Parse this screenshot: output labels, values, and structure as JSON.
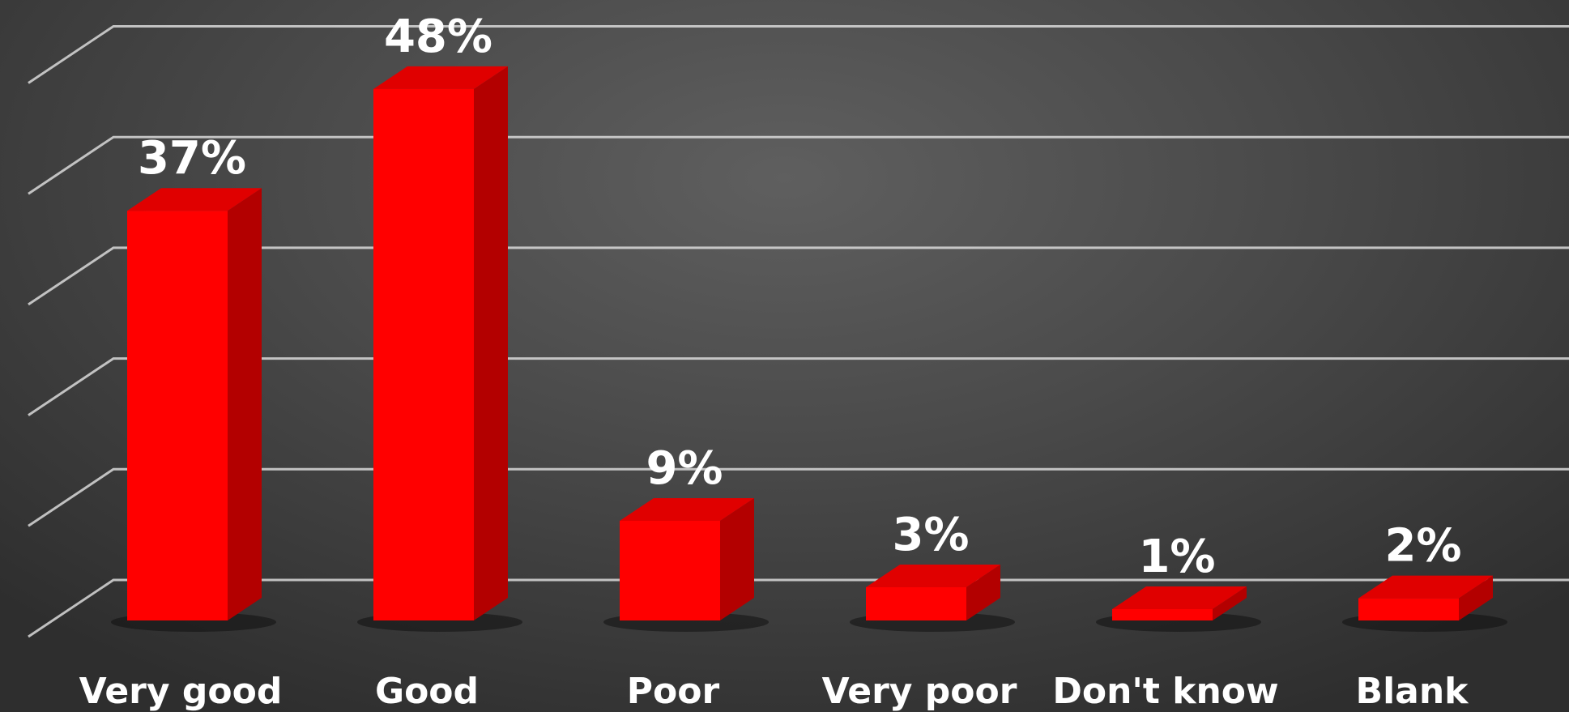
{
  "chart_data": {
    "type": "bar",
    "categories": [
      "Very good",
      "Good",
      "Poor",
      "Very poor",
      "Don't know",
      "Blank"
    ],
    "values": [
      37,
      48,
      9,
      3,
      1,
      2
    ],
    "data_labels": [
      "37%",
      "48%",
      "9%",
      "3%",
      "1%",
      "2%"
    ],
    "title": "",
    "xlabel": "",
    "ylabel": "",
    "ylim": [
      0,
      50
    ],
    "grid": true,
    "style": "3d-column",
    "colors": {
      "bar_front": "#ff0000",
      "bar_side": "#b30000",
      "bar_top": "#e00000",
      "gridline": "#d9d9d9",
      "label": "#ffffff",
      "background": "#4a4a4a"
    }
  }
}
